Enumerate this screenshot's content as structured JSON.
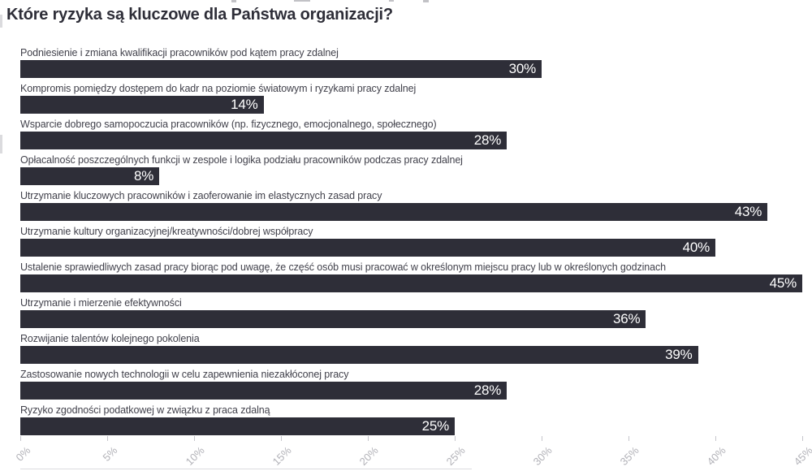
{
  "page": {
    "title": "Które ryzyka są kluczowe dla Państwa organizacji?"
  },
  "chart_data": {
    "type": "bar",
    "orientation": "horizontal",
    "title": "Które ryzyka są kluczowe dla Państwa organizacji?",
    "categories": [
      "Podniesienie i zmiana kwalifikacji pracowników pod kątem pracy zdalnej",
      "Kompromis pomiędzy dostępem do kadr na poziomie światowym i ryzykami pracy zdalnej",
      "Wsparcie dobrego samopoczucia pracowników (np. fizycznego, emocjonalnego, społecznego)",
      "Opłacalność poszczególnych funkcji w zespole i logika podziału pracowników podczas pracy zdalnej",
      "Utrzymanie kluczowych pracowników i zaoferowanie im elastycznych zasad pracy",
      "Utrzymanie kultury organizacyjnej/kreatywności/dobrej współpracy",
      "Ustalenie sprawiedliwych zasad pracy biorąc pod uwagę, że część osób musi pracować w określonym miejscu pracy lub w określonych godzinach",
      "Utrzymanie i mierzenie efektywności",
      "Rozwijanie talentów kolejnego pokolenia",
      "Zastosowanie nowych technologii w celu zapewnienia niezakłóconej pracy",
      "Ryzyko zgodności podatkowej w związku z praca zdalną"
    ],
    "values": [
      30,
      14,
      28,
      8,
      43,
      40,
      45,
      36,
      39,
      28,
      25
    ],
    "value_labels": [
      "30%",
      "14%",
      "28%",
      "8%",
      "43%",
      "40%",
      "45%",
      "36%",
      "39%",
      "28%",
      "25%"
    ],
    "xlabel": "",
    "ylabel": "",
    "xlim": [
      0,
      45
    ],
    "x_tick_values": [
      0,
      5,
      10,
      15,
      20,
      25,
      30,
      35,
      40,
      45
    ],
    "x_ticks": [
      "0%",
      "5%",
      "10%",
      "15%",
      "20%",
      "25%",
      "30%",
      "35%",
      "40%",
      "45%"
    ],
    "grid": false,
    "legend": null,
    "bar_color": "#2e2e38",
    "value_label_color": "#ffffff",
    "axis_label_color": "#b2b2b8"
  }
}
